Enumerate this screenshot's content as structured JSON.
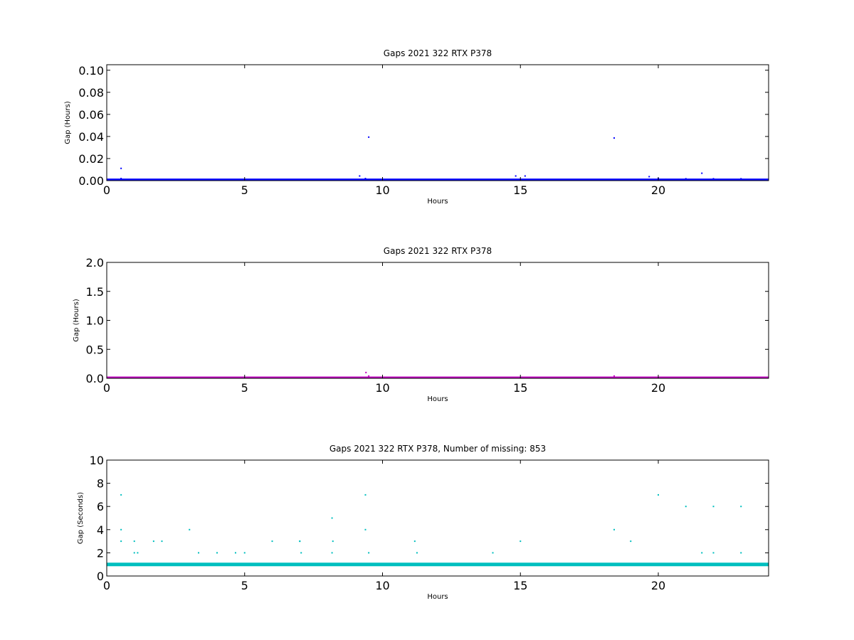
{
  "chart_data": [
    {
      "type": "scatter",
      "title": "Gaps 2021 322 RTX  P378",
      "xlabel": "Hours",
      "ylabel": "Gap (Hours)",
      "xlim": [
        0,
        24
      ],
      "ylim": [
        0,
        0.105
      ],
      "xticks": [
        "0",
        "5",
        "10",
        "15",
        "20"
      ],
      "yticks": [
        "0.00",
        "0.02",
        "0.04",
        "0.06",
        "0.08",
        "0.10"
      ],
      "grid": false,
      "color": "#0000ff",
      "baseline": {
        "y": 0.000278,
        "x_start": 0,
        "x_end": 24
      },
      "points": [
        {
          "x": 0.52,
          "y": 0.0111
        },
        {
          "x": 0.52,
          "y": 0.0019
        },
        {
          "x": 9.17,
          "y": 0.0042
        },
        {
          "x": 9.38,
          "y": 0.0019
        },
        {
          "x": 9.42,
          "y": 0.0008
        },
        {
          "x": 9.5,
          "y": 0.0394
        },
        {
          "x": 14.83,
          "y": 0.0042
        },
        {
          "x": 15.17,
          "y": 0.0042
        },
        {
          "x": 18.4,
          "y": 0.0386
        },
        {
          "x": 19.67,
          "y": 0.0036
        },
        {
          "x": 20.0,
          "y": 0.0019
        },
        {
          "x": 21.0,
          "y": 0.0017
        },
        {
          "x": 21.58,
          "y": 0.0067
        },
        {
          "x": 22.0,
          "y": 0.0017
        },
        {
          "x": 23.0,
          "y": 0.0017
        }
      ]
    },
    {
      "type": "scatter",
      "title": "Gaps 2021 322 RTX  P378",
      "xlabel": "Hours",
      "ylabel": "Gap (Hours)",
      "xlim": [
        0,
        24
      ],
      "ylim": [
        0,
        2.0
      ],
      "xticks": [
        "0",
        "5",
        "10",
        "15",
        "20"
      ],
      "yticks": [
        "0.0",
        "0.5",
        "1.0",
        "1.5",
        "2.0"
      ],
      "grid": false,
      "color": "#bf00bf",
      "baseline": {
        "y": 0.000278,
        "x_start": 0,
        "x_end": 24
      },
      "points": [
        {
          "x": 9.4,
          "y": 0.1
        },
        {
          "x": 9.5,
          "y": 0.0394
        },
        {
          "x": 18.4,
          "y": 0.0386
        }
      ]
    },
    {
      "type": "scatter",
      "title": "Gaps 2021 322 RTX  P378, Number of missing: 853",
      "xlabel": "Hours",
      "ylabel": "Gap (Seconds)",
      "xlim": [
        0,
        24
      ],
      "ylim": [
        0,
        10
      ],
      "xticks": [
        "0",
        "5",
        "10",
        "15",
        "20"
      ],
      "yticks": [
        "0",
        "2",
        "4",
        "6",
        "8",
        "10"
      ],
      "grid": false,
      "color": "#00bfbf",
      "baseline": {
        "y": 1,
        "x_start": 0,
        "x_end": 24
      },
      "points": [
        {
          "x": 0.52,
          "y": 7
        },
        {
          "x": 0.52,
          "y": 4
        },
        {
          "x": 0.52,
          "y": 3
        },
        {
          "x": 1.0,
          "y": 3
        },
        {
          "x": 1.0,
          "y": 2
        },
        {
          "x": 1.12,
          "y": 2
        },
        {
          "x": 1.7,
          "y": 3
        },
        {
          "x": 2.0,
          "y": 3
        },
        {
          "x": 3.0,
          "y": 4
        },
        {
          "x": 3.33,
          "y": 2
        },
        {
          "x": 4.0,
          "y": 2
        },
        {
          "x": 4.67,
          "y": 2
        },
        {
          "x": 5.0,
          "y": 2
        },
        {
          "x": 6.0,
          "y": 3
        },
        {
          "x": 7.0,
          "y": 3
        },
        {
          "x": 7.0,
          "y": 3
        },
        {
          "x": 7.05,
          "y": 2
        },
        {
          "x": 8.17,
          "y": 5
        },
        {
          "x": 8.2,
          "y": 3
        },
        {
          "x": 8.17,
          "y": 2
        },
        {
          "x": 9.38,
          "y": 7
        },
        {
          "x": 9.38,
          "y": 4
        },
        {
          "x": 9.5,
          "y": 2
        },
        {
          "x": 11.17,
          "y": 3
        },
        {
          "x": 11.25,
          "y": 2
        },
        {
          "x": 14.0,
          "y": 2
        },
        {
          "x": 15.0,
          "y": 3
        },
        {
          "x": 18.4,
          "y": 4
        },
        {
          "x": 19.0,
          "y": 3
        },
        {
          "x": 20.0,
          "y": 7
        },
        {
          "x": 21.0,
          "y": 6
        },
        {
          "x": 21.58,
          "y": 2
        },
        {
          "x": 22.0,
          "y": 6
        },
        {
          "x": 22.0,
          "y": 2
        },
        {
          "x": 23.0,
          "y": 6
        },
        {
          "x": 23.0,
          "y": 2
        }
      ]
    }
  ]
}
